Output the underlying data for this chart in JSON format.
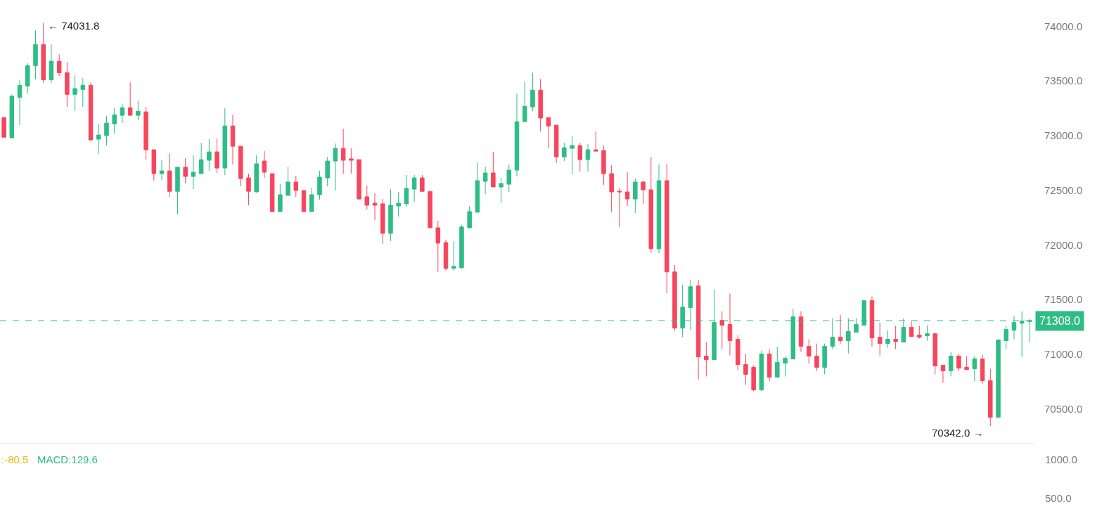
{
  "chart_data": [
    {
      "type": "candlestick",
      "categories": [
        null,
        null,
        null,
        null,
        null,
        null,
        null,
        null,
        null,
        null,
        null,
        null,
        null,
        null,
        null,
        null,
        null,
        null,
        null,
        null,
        null,
        null,
        null,
        null,
        null,
        null,
        null,
        null,
        null,
        null,
        null,
        null,
        null,
        null,
        null,
        null,
        null,
        null,
        null,
        null,
        null,
        null,
        null,
        null,
        null,
        null,
        null,
        null,
        null,
        null,
        null,
        null,
        null,
        null,
        null,
        null,
        null,
        null,
        null,
        null,
        null,
        null,
        null,
        null,
        null,
        null,
        null,
        null,
        null,
        null,
        null,
        null,
        null,
        null,
        null,
        null,
        null,
        null,
        null,
        null,
        null,
        null,
        null,
        null,
        null,
        null,
        null,
        null,
        null,
        null,
        null,
        null,
        null,
        null,
        null,
        null,
        null,
        null,
        null,
        null,
        null,
        null,
        null,
        null,
        null,
        null,
        null,
        null,
        null,
        null,
        null,
        null,
        null,
        null,
        null,
        null,
        null,
        null,
        null,
        null,
        null,
        null,
        null,
        null,
        null,
        null,
        null,
        null,
        null,
        null,
        null
      ],
      "ohlc": [
        [
          73165,
          73170,
          72980,
          72985
        ],
        [
          72980,
          73377,
          72973,
          73360
        ],
        [
          73350,
          73510,
          73095,
          73460
        ],
        [
          73454,
          73660,
          73384,
          73640
        ],
        [
          73640,
          73960,
          73518,
          73833
        ],
        [
          73833,
          74031.8,
          73480,
          73510
        ],
        [
          73510,
          73833,
          73480,
          73680
        ],
        [
          73680,
          73743,
          73544,
          73575
        ],
        [
          73575,
          73673,
          73262,
          73377
        ],
        [
          73377,
          73550,
          73223,
          73430
        ],
        [
          73422,
          73525,
          73262,
          73460
        ],
        [
          73460,
          73486,
          72954,
          72960
        ],
        [
          72967,
          73107,
          72832,
          73005
        ],
        [
          73000,
          73178,
          72910,
          73114
        ],
        [
          73107,
          73255,
          73018,
          73190
        ],
        [
          73185,
          73287,
          73114,
          73255
        ],
        [
          73255,
          73486,
          73185,
          73185
        ],
        [
          73185,
          73320,
          73140,
          73223
        ],
        [
          73217,
          73262,
          72780,
          72870
        ],
        [
          72870,
          72870,
          72588,
          72652
        ],
        [
          72652,
          72774,
          72594,
          72677
        ],
        [
          72677,
          72838,
          72440,
          72490
        ],
        [
          72490,
          72716,
          72280,
          72710
        ],
        [
          72710,
          72793,
          72562,
          72626
        ],
        [
          72626,
          72819,
          72510,
          72665
        ],
        [
          72652,
          72934,
          72652,
          72780
        ],
        [
          72774,
          72966,
          72678,
          72851
        ],
        [
          72851,
          72973,
          72658,
          72703
        ],
        [
          72703,
          73249,
          72639,
          73088
        ],
        [
          73088,
          73191,
          72735,
          72902
        ],
        [
          72902,
          72902,
          72536,
          72607
        ],
        [
          72613,
          72652,
          72363,
          72490
        ],
        [
          72485,
          72819,
          72478,
          72742
        ],
        [
          72767,
          72857,
          72613,
          72665
        ],
        [
          72652,
          72652,
          72299,
          72305
        ],
        [
          72305,
          72555,
          72305,
          72459
        ],
        [
          72453,
          72716,
          72453,
          72575
        ],
        [
          72575,
          72633,
          72440,
          72498
        ],
        [
          72498,
          72498,
          72305,
          72305
        ],
        [
          72305,
          72523,
          72305,
          72459
        ],
        [
          72459,
          72678,
          72414,
          72620
        ],
        [
          72613,
          72806,
          72536,
          72767
        ],
        [
          72767,
          72928,
          72498,
          72883
        ],
        [
          72883,
          73063,
          72652,
          72774
        ],
        [
          72787,
          72883,
          72652,
          72774
        ],
        [
          72780,
          72780,
          72414,
          72420
        ],
        [
          72440,
          72543,
          72324,
          72363
        ],
        [
          72382,
          72472,
          72228,
          72363
        ],
        [
          72376,
          72420,
          72010,
          72106
        ],
        [
          72106,
          72510,
          72035,
          72363
        ],
        [
          72356,
          72485,
          72260,
          72382
        ],
        [
          72376,
          72639,
          72350,
          72517
        ],
        [
          72510,
          72639,
          72395,
          72613
        ],
        [
          72613,
          72639,
          72490,
          72490
        ],
        [
          72490,
          72490,
          72157,
          72157
        ],
        [
          72157,
          72222,
          71753,
          72016
        ],
        [
          72022,
          72048,
          71766,
          71785
        ],
        [
          71785,
          72035,
          71766,
          71804
        ],
        [
          71792,
          72183,
          71779,
          72164
        ],
        [
          72157,
          72356,
          72150,
          72305
        ],
        [
          72299,
          72748,
          72299,
          72588
        ],
        [
          72581,
          72716,
          72466,
          72658
        ],
        [
          72658,
          72851,
          72530,
          72530
        ],
        [
          72530,
          72613,
          72382,
          72562
        ],
        [
          72555,
          72735,
          72485,
          72684
        ],
        [
          72684,
          73384,
          72626,
          73127
        ],
        [
          73127,
          73493,
          73127,
          73268
        ],
        [
          73262,
          73575,
          73223,
          73416
        ],
        [
          73416,
          73518,
          73037,
          73160
        ],
        [
          73165,
          73165,
          72883,
          73088
        ],
        [
          73095,
          73095,
          72748,
          72806
        ],
        [
          72806,
          72934,
          72767,
          72889
        ],
        [
          72883,
          73000,
          72645,
          72909
        ],
        [
          72909,
          72934,
          72671,
          72780
        ],
        [
          72780,
          72922,
          72671,
          72870
        ],
        [
          72870,
          73037,
          72857,
          72857
        ],
        [
          72864,
          72909,
          72549,
          72652
        ],
        [
          72652,
          72729,
          72299,
          72485
        ],
        [
          72491,
          72517,
          72164,
          72485
        ],
        [
          72485,
          72665,
          72356,
          72420
        ],
        [
          72420,
          72607,
          72292,
          72575
        ],
        [
          72575,
          72588,
          72376,
          72504
        ],
        [
          72504,
          72806,
          71926,
          71965
        ],
        [
          71965,
          72735,
          71926,
          72588
        ],
        [
          72588,
          72742,
          71560,
          71753
        ],
        [
          71753,
          71817,
          71214,
          71239
        ],
        [
          71239,
          71637,
          71156,
          71432
        ],
        [
          71426,
          71680,
          71220,
          71618
        ],
        [
          71625,
          71680,
          70771,
          70976
        ],
        [
          70983,
          71111,
          70797,
          70950
        ],
        [
          70950,
          71593,
          70950,
          71291
        ],
        [
          71310,
          71393,
          71047,
          71265
        ],
        [
          71272,
          71554,
          70989,
          71124
        ],
        [
          71137,
          71175,
          70854,
          70906
        ],
        [
          70906,
          71002,
          70719,
          70816
        ],
        [
          70880,
          70899,
          70662,
          70674
        ],
        [
          70674,
          71034,
          70662,
          71002
        ],
        [
          71002,
          71047,
          70752,
          70790
        ],
        [
          70790,
          71066,
          70790,
          70925
        ],
        [
          70918,
          70983,
          70797,
          70963
        ],
        [
          70957,
          71419,
          70957,
          71342
        ],
        [
          71342,
          71393,
          71021,
          71072
        ],
        [
          71072,
          71137,
          70912,
          70983
        ],
        [
          70983,
          71098,
          70848,
          70880
        ],
        [
          70880,
          71098,
          70816,
          71072
        ],
        [
          71072,
          71329,
          71047,
          71156
        ],
        [
          71156,
          71361,
          71098,
          71124
        ],
        [
          71124,
          71329,
          71008,
          71208
        ],
        [
          71201,
          71329,
          71201,
          71272
        ],
        [
          71265,
          71496,
          71265,
          71490
        ],
        [
          71490,
          71528,
          71072,
          71150
        ],
        [
          71156,
          71291,
          70989,
          71098
        ],
        [
          71098,
          71220,
          71060,
          71137
        ],
        [
          71137,
          71259,
          71047,
          71117
        ],
        [
          71111,
          71329,
          71111,
          71246
        ],
        [
          71246,
          71304,
          71162,
          71162
        ],
        [
          71175,
          71259,
          71143,
          71156
        ],
        [
          71169,
          71265,
          71124,
          71188
        ],
        [
          71188,
          71188,
          70816,
          70893
        ],
        [
          70899,
          70899,
          70739,
          70848
        ],
        [
          70848,
          71021,
          70797,
          70983
        ],
        [
          70983,
          71002,
          70848,
          70873
        ],
        [
          70880,
          70983,
          70854,
          70861
        ],
        [
          70867,
          70983,
          70752,
          70957
        ],
        [
          70957,
          70995,
          70733,
          70758
        ],
        [
          70758,
          70867,
          70342,
          70424
        ],
        [
          70424,
          71137,
          70424,
          71130
        ],
        [
          71124,
          71265,
          71047,
          71227
        ],
        [
          71220,
          71349,
          71137,
          71291
        ],
        [
          71284,
          71393,
          70976,
          71304
        ],
        [
          71300,
          71323,
          71111,
          71308
        ]
      ],
      "colors": [
        "#f6465d",
        "#2ebd85",
        "#2ebd85",
        "#2ebd85",
        "#2ebd85",
        "#f6465d",
        "#2ebd85",
        "#f6465d",
        "#f6465d",
        "#2ebd85",
        "#2ebd85",
        "#f6465d",
        "#2ebd85",
        "#2ebd85",
        "#2ebd85",
        "#2ebd85",
        "#f6465d",
        "#2ebd85",
        "#f6465d",
        "#f6465d",
        "#2ebd85",
        "#f6465d",
        "#2ebd85",
        "#f6465d",
        "#2ebd85",
        "#2ebd85",
        "#2ebd85",
        "#f6465d",
        "#2ebd85",
        "#f6465d",
        "#f6465d",
        "#f6465d",
        "#2ebd85",
        "#f6465d",
        "#f6465d",
        "#2ebd85",
        "#2ebd85",
        "#f6465d",
        "#f6465d",
        "#2ebd85",
        "#2ebd85",
        "#2ebd85",
        "#2ebd85",
        "#f6465d",
        "#f6465d",
        "#f6465d",
        "#f6465d",
        "#f6465d",
        "#f6465d",
        "#2ebd85",
        "#2ebd85",
        "#2ebd85",
        "#2ebd85",
        "#f6465d",
        "#f6465d",
        "#f6465d",
        "#f6465d",
        "#2ebd85",
        "#2ebd85",
        "#2ebd85",
        "#2ebd85",
        "#2ebd85",
        "#f6465d",
        "#2ebd85",
        "#2ebd85",
        "#2ebd85",
        "#2ebd85",
        "#2ebd85",
        "#f6465d",
        "#f6465d",
        "#f6465d",
        "#2ebd85",
        "#2ebd85",
        "#f6465d",
        "#2ebd85",
        "#f6465d",
        "#f6465d",
        "#f6465d",
        "#f6465d",
        "#f6465d",
        "#2ebd85",
        "#f6465d",
        "#f6465d",
        "#2ebd85",
        "#f6465d",
        "#f6465d",
        "#2ebd85",
        "#2ebd85",
        "#f6465d",
        "#f6465d",
        "#2ebd85",
        "#f6465d",
        "#f6465d",
        "#f6465d",
        "#f6465d",
        "#f6465d",
        "#2ebd85",
        "#f6465d",
        "#2ebd85",
        "#2ebd85",
        "#2ebd85",
        "#f6465d",
        "#f6465d",
        "#f6465d",
        "#2ebd85",
        "#2ebd85",
        "#f6465d",
        "#2ebd85",
        "#2ebd85",
        "#2ebd85",
        "#f6465d",
        "#f6465d",
        "#2ebd85",
        "#f6465d",
        "#2ebd85",
        "#f6465d",
        "#f6465d",
        "#2ebd85",
        "#f6465d",
        "#f6465d",
        "#2ebd85",
        "#f6465d",
        "#f6465d",
        "#2ebd85",
        "#f6465d",
        "#f6465d",
        "#2ebd85",
        "#2ebd85",
        "#2ebd85",
        "#2ebd85",
        "#2ebd85"
      ],
      "ylim": [
        70190,
        74240
      ],
      "yticks": [
        {
          "value": 70500,
          "label": "70500.0"
        },
        {
          "value": 71000,
          "label": "71000.0"
        },
        {
          "value": 71500,
          "label": "71500.0"
        },
        {
          "value": 72000,
          "label": "72000.0"
        },
        {
          "value": 72500,
          "label": "72500.0"
        },
        {
          "value": 73000,
          "label": "73000.0"
        },
        {
          "value": 73500,
          "label": "73500.0"
        },
        {
          "value": 74000,
          "label": "74000.0"
        }
      ],
      "ref_lines": [
        {
          "axis": "y",
          "value": 71308,
          "label": "71308.0",
          "color": "#2ebd85",
          "line_style": "dashed"
        }
      ],
      "annotations": [
        "← 74031.8",
        "70342.0 →"
      ],
      "tick_labels": "y"
    },
    {
      "type": "other",
      "annotations": [
        ":-80.5",
        "MACD:129.6",
        "1000.0",
        "500.0"
      ]
    }
  ]
}
